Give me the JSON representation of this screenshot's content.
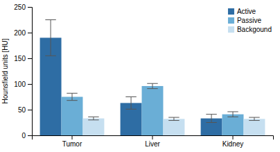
{
  "chart_data": {
    "type": "bar",
    "categories": [
      "Tumor",
      "Liver",
      "Kidney"
    ],
    "series": [
      {
        "name": "Active",
        "color": "#2e6da4",
        "values": [
          190,
          63,
          33
        ],
        "errors": [
          35,
          12,
          8
        ]
      },
      {
        "name": "Passive",
        "color": "#6aaed6",
        "values": [
          75,
          96,
          41
        ],
        "errors": [
          7,
          5,
          5
        ]
      },
      {
        "name": "Backgound",
        "color": "#c6dff0",
        "values": [
          33,
          32,
          32
        ],
        "errors": [
          3,
          3,
          3
        ]
      }
    ],
    "ylabel": "Hounsfield units [HU]",
    "ylim": [
      0,
      250
    ],
    "yticks": [
      0,
      50,
      100,
      150,
      200,
      250
    ],
    "legend": "upper right",
    "grid": false
  }
}
